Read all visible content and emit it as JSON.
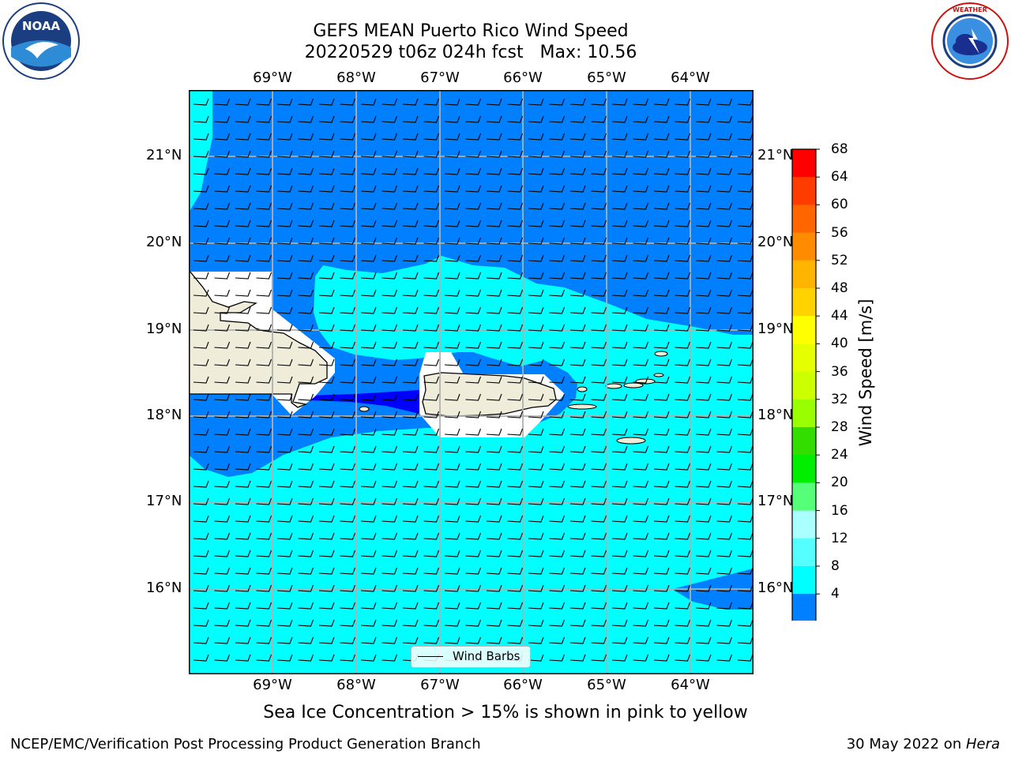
{
  "title": {
    "line1": "GEFS MEAN Puerto Rico Wind Speed",
    "line2": "20220529 t06z 024h fcst   Max: 10.56"
  },
  "map": {
    "lon_labels": [
      "69°W",
      "68°W",
      "67°W",
      "66°W",
      "65°W",
      "64°W"
    ],
    "lat_labels": [
      "21°N",
      "20°N",
      "19°N",
      "18°N",
      "17°N",
      "16°N"
    ],
    "regions": [
      "Hispaniola",
      "Puerto Rico",
      "Virgin Islands"
    ],
    "wind_field": {
      "min_band_m_s": "<4",
      "open_ocean_band_m_s": "8-12",
      "north_band_m_s": "4-8"
    }
  },
  "legend": {
    "label": "Wind Barbs"
  },
  "colorbar": {
    "title": "Wind Speed [m/s]",
    "ticks": [
      "68",
      "64",
      "60",
      "56",
      "52",
      "48",
      "44",
      "40",
      "36",
      "32",
      "28",
      "24",
      "20",
      "16",
      "12",
      "8",
      "4"
    ],
    "colors": [
      "#ff0000",
      "#ff3c00",
      "#ff6600",
      "#ff8c00",
      "#ffb400",
      "#ffd200",
      "#ffff00",
      "#e6ff00",
      "#ccff00",
      "#99ff00",
      "#33dd00",
      "#00ee00",
      "#55ff77",
      "#aaffff",
      "#55ffff",
      "#00ffff",
      "#007fff"
    ],
    "extend_color": "#0000ff"
  },
  "note": "Sea Ice Concentration > 15% is shown in pink to yellow",
  "footer": {
    "left": "NCEP/EMC/Verification Post Processing Product Generation Branch",
    "right_prefix": "30 May 2022 on ",
    "right_machine": "Hera"
  },
  "logos": {
    "left": "NOAA",
    "right": "NATIONAL WEATHER SERVICE"
  }
}
